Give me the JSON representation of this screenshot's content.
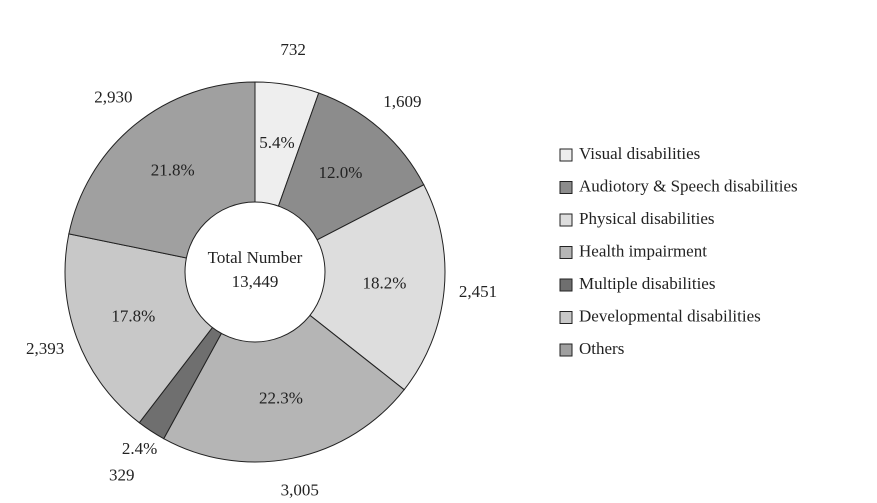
{
  "chart_data": {
    "type": "pie",
    "categories": [
      "Visual disabilities",
      "Audiotory & Speech disabilities",
      "Physical disabilities",
      "Health impairment",
      "Multiple disabilities",
      "Developmental disabilities",
      "Others"
    ],
    "values": [
      732,
      1609,
      2451,
      3005,
      329,
      2393,
      2930
    ],
    "value_labels": [
      "732",
      "1,609",
      "2,451",
      "3,005",
      "329",
      "2,393",
      "2,930"
    ],
    "percents": [
      5.4,
      12.0,
      18.2,
      22.3,
      2.4,
      17.8,
      21.8
    ],
    "percent_labels": [
      "5.4%",
      "12.0%",
      "18.2%",
      "22.3%",
      "2.4%",
      "17.8%",
      "21.8%"
    ],
    "colors": [
      "#eeeeee",
      "#8c8c8c",
      "#dddddd",
      "#b5b5b5",
      "#6f6f6f",
      "#c8c8c8",
      "#a0a0a0"
    ],
    "center_text": [
      "Total Number",
      "13,449"
    ],
    "legend": "right"
  }
}
